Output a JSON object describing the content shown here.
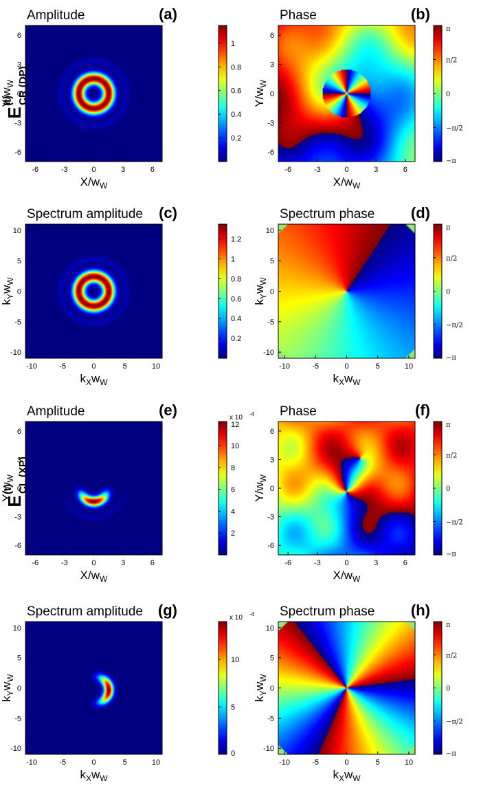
{
  "colors": {
    "colormap": "jet",
    "background": "#00008f"
  },
  "row_labels": [
    {
      "main": "E",
      "sup": "(t)",
      "sub": "CR (DP)"
    },
    {
      "main": "E",
      "sup": "(t)",
      "sub": "CL (XP)"
    }
  ],
  "chart_data": [
    {
      "type": "heatmap",
      "panel": "(a)",
      "title": "Amplitude",
      "xlabel": "X/w",
      "xlabel_sub": "W",
      "ylabel": "Y/w",
      "ylabel_sub": "W",
      "xticks": [
        "-6",
        "-3",
        "0",
        "3",
        "6"
      ],
      "yticks": [
        "6",
        "3",
        "0",
        "-3",
        "-6"
      ],
      "xlim": [
        -7,
        7
      ],
      "ylim": [
        -7,
        7
      ],
      "field": "ring",
      "colorbar_ticks": [
        "1",
        "0.8",
        "0.6",
        "0.4",
        "0.2"
      ],
      "colorbar_range": [
        0,
        1.15
      ]
    },
    {
      "type": "heatmap",
      "panel": "(b)",
      "title": "Phase",
      "xlabel": "X/w",
      "xlabel_sub": "W",
      "ylabel": "Y/w",
      "ylabel_sub": "W",
      "xticks": [
        "-6",
        "-3",
        "0",
        "3",
        "6"
      ],
      "yticks": [
        "6",
        "3",
        "0",
        "-3",
        "-6"
      ],
      "xlim": [
        -7,
        7
      ],
      "ylim": [
        -7,
        7
      ],
      "field": "phase_near",
      "colorbar_ticks": [
        "π",
        "π/2",
        "0",
        "−π/2",
        "−π"
      ],
      "colorbar_range": [
        -3.1416,
        3.1416
      ]
    },
    {
      "type": "heatmap",
      "panel": "(c)",
      "title": "Spectrum amplitude",
      "xlabel": "k",
      "xlabel_sub": "X",
      "xlabel_tail": "w",
      "xlabel_tail_sub": "W",
      "ylabel": "k",
      "ylabel_sub": "Y",
      "ylabel_tail": "w",
      "ylabel_tail_sub": "W",
      "xticks": [
        "-10",
        "-5",
        "0",
        "5",
        "10"
      ],
      "yticks": [
        "10",
        "5",
        "0",
        "-5",
        "-10"
      ],
      "xlim": [
        -11,
        11
      ],
      "ylim": [
        -11,
        11
      ],
      "field": "ring",
      "colorbar_ticks": [
        "1.2",
        "1",
        "0.8",
        "0.6",
        "0.4",
        "0.2"
      ],
      "colorbar_range": [
        0,
        1.35
      ]
    },
    {
      "type": "heatmap",
      "panel": "(d)",
      "title": "Spectrum phase",
      "xlabel": "k",
      "xlabel_sub": "X",
      "xlabel_tail": "w",
      "xlabel_tail_sub": "W",
      "ylabel": "k",
      "ylabel_sub": "Y",
      "ylabel_tail": "w",
      "ylabel_tail_sub": "W",
      "xticks": [
        "-10",
        "-5",
        "0",
        "5",
        "10"
      ],
      "yticks": [
        "10",
        "5",
        "0",
        "-5",
        "-10"
      ],
      "xlim": [
        -11,
        11
      ],
      "ylim": [
        -11,
        11
      ],
      "field": "phase_spiral",
      "colorbar_ticks": [
        "π",
        "π/2",
        "0",
        "−π/2",
        "−π"
      ],
      "colorbar_range": [
        -3.1416,
        3.1416
      ]
    },
    {
      "type": "heatmap",
      "panel": "(e)",
      "title": "Amplitude",
      "xlabel": "X/w",
      "xlabel_sub": "W",
      "ylabel": "Y/w",
      "ylabel_sub": "W",
      "xticks": [
        "-6",
        "-3",
        "0",
        "3",
        "6"
      ],
      "yticks": [
        "6",
        "3",
        "0",
        "-3",
        "-6"
      ],
      "xlim": [
        -7,
        7
      ],
      "ylim": [
        -7,
        7
      ],
      "field": "crescent_down",
      "colorbar_exponent": "x 10",
      "colorbar_exponent_sup": "-4",
      "colorbar_ticks": [
        "12",
        "10",
        "8",
        "6",
        "4",
        "2"
      ],
      "colorbar_range": [
        0,
        12.2
      ]
    },
    {
      "type": "heatmap",
      "panel": "(f)",
      "title": "Phase",
      "xlabel": "X/w",
      "xlabel_sub": "W",
      "ylabel": "Y/w",
      "ylabel_sub": "W",
      "xticks": [
        "-6",
        "-3",
        "0",
        "3",
        "6"
      ],
      "yticks": [
        "6",
        "3",
        "0",
        "-3",
        "-6"
      ],
      "xlim": [
        -7,
        7
      ],
      "ylim": [
        -7,
        7
      ],
      "field": "phase_near2",
      "colorbar_ticks": [
        "π",
        "π/2",
        "0",
        "−π/2",
        "−π"
      ],
      "colorbar_range": [
        -3.1416,
        3.1416
      ]
    },
    {
      "type": "heatmap",
      "panel": "(g)",
      "title": "Spectrum amplitude",
      "xlabel": "k",
      "xlabel_sub": "X",
      "xlabel_tail": "w",
      "xlabel_tail_sub": "W",
      "ylabel": "k",
      "ylabel_sub": "Y",
      "ylabel_tail": "w",
      "ylabel_tail_sub": "W",
      "xticks": [
        "-10",
        "-5",
        "0",
        "5",
        "10"
      ],
      "yticks": [
        "10",
        "5",
        "0",
        "-5",
        "-10"
      ],
      "xlim": [
        -11,
        11
      ],
      "ylim": [
        -11,
        11
      ],
      "field": "crescent_right",
      "colorbar_exponent": "x 10",
      "colorbar_exponent_sup": "-4",
      "colorbar_ticks": [
        "10",
        "5",
        "0"
      ],
      "colorbar_range": [
        0,
        14
      ]
    },
    {
      "type": "heatmap",
      "panel": "(h)",
      "title": "Spectrum phase",
      "xlabel": "k",
      "xlabel_sub": "X",
      "xlabel_tail": "w",
      "xlabel_tail_sub": "W",
      "ylabel": "k",
      "ylabel_sub": "Y",
      "ylabel_tail": "w",
      "ylabel_tail_sub": "W",
      "xticks": [
        "-10",
        "-5",
        "0",
        "5",
        "10"
      ],
      "yticks": [
        "10",
        "5",
        "0",
        "-5",
        "-10"
      ],
      "xlim": [
        -11,
        11
      ],
      "ylim": [
        -11,
        11
      ],
      "field": "phase_spiral3",
      "colorbar_ticks": [
        "π",
        "π/2",
        "0",
        "−π/2",
        "−π"
      ],
      "colorbar_range": [
        -3.1416,
        3.1416
      ]
    }
  ]
}
